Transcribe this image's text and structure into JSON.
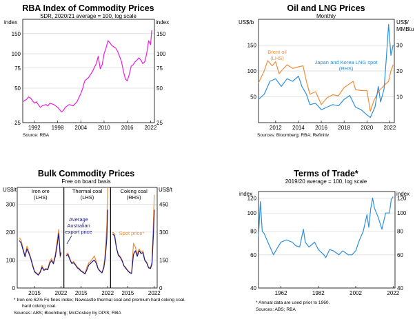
{
  "chart_data": [
    {
      "type": "line",
      "title": "RBA Index of Commodity Prices",
      "subtitle": "SDR, 2020/21 average = 100, log scale",
      "ylabel_left": "index",
      "ylabel_right": "index",
      "y_scale": "log",
      "ylim": [
        25,
        200
      ],
      "yticks": [
        25,
        50,
        75,
        100,
        150
      ],
      "xticks": [
        "1992",
        "1998",
        "2004",
        "2010",
        "2016",
        "2022"
      ],
      "xlim": [
        1989,
        2023
      ],
      "grid": true,
      "source": "Source:   RBA",
      "colors": {
        "series": "#e91ee0"
      },
      "series": [
        {
          "name": "",
          "x": [
            1989,
            1990,
            1990.5,
            1991,
            1991.5,
            1992,
            1992.5,
            1993,
            1993.5,
            1994,
            1995,
            1995.5,
            1996,
            1997,
            1998,
            1999,
            1999.5,
            2000,
            2001,
            2002,
            2003,
            2004,
            2004.5,
            2005,
            2006,
            2007,
            2008,
            2008.5,
            2009,
            2009.5,
            2010,
            2010.5,
            2011,
            2011.5,
            2012,
            2013,
            2013.5,
            2014,
            2014.5,
            2015,
            2015.5,
            2016,
            2016.5,
            2017,
            2017.5,
            2018,
            2018.5,
            2019,
            2019.5,
            2020,
            2020.5,
            2021,
            2021.5,
            2022,
            2022.3
          ],
          "values": [
            38,
            40,
            42,
            41,
            39,
            37,
            38,
            36,
            34,
            35,
            36,
            35,
            37,
            36,
            34,
            31,
            32,
            34,
            36,
            35,
            38,
            45,
            50,
            58,
            62,
            70,
            82,
            95,
            74,
            80,
            100,
            112,
            130,
            125,
            118,
            112,
            105,
            95,
            85,
            70,
            60,
            58,
            66,
            78,
            80,
            85,
            88,
            92,
            88,
            82,
            85,
            100,
            130,
            120,
            160
          ]
        }
      ]
    },
    {
      "type": "line",
      "title": "Oil and LNG Prices",
      "subtitle": "Monthly",
      "ylabel_left": "US$/b",
      "ylabel_right": "US$/ MMBtu",
      "ylim_left": [
        0,
        200
      ],
      "ylim_right": [
        0,
        40
      ],
      "yticks_left": [
        50,
        100,
        150
      ],
      "yticks_right": [
        10,
        20,
        30
      ],
      "xticks": [
        "2012",
        "2014",
        "2016",
        "2018",
        "2020",
        "2022"
      ],
      "xlim": [
        2010.5,
        2022.4
      ],
      "grid": true,
      "source": "Sources: Bloomberg; RBA; Refinitiv",
      "colors": {
        "brent": "#f28c35",
        "lng": "#2a8fe0"
      },
      "series": [
        {
          "name": "Brent oil (LHS)",
          "x": [
            2010.5,
            2011,
            2011.3,
            2011.7,
            2012,
            2012.3,
            2012.5,
            2013,
            2013.5,
            2014,
            2014.4,
            2014.7,
            2015,
            2015.5,
            2016,
            2016.5,
            2017,
            2017.5,
            2018,
            2018.8,
            2019,
            2019.5,
            2020,
            2020.3,
            2020.6,
            2021,
            2021.5,
            2021.9,
            2022.1,
            2022.3
          ],
          "values": [
            77,
            100,
            120,
            110,
            118,
            95,
            100,
            112,
            105,
            108,
            110,
            80,
            55,
            60,
            35,
            48,
            54,
            52,
            68,
            80,
            64,
            62,
            62,
            22,
            42,
            60,
            72,
            80,
            100,
            112
          ]
        },
        {
          "name": "Japan and Korea LNG spot (RHS)",
          "x": [
            2010.5,
            2011,
            2011.5,
            2012,
            2012.5,
            2013,
            2013.5,
            2014,
            2014.3,
            2014.7,
            2015,
            2015.5,
            2016,
            2016.5,
            2017,
            2017.5,
            2018,
            2018.5,
            2019,
            2019.5,
            2020,
            2020.3,
            2020.7,
            2021,
            2021.2,
            2021.5,
            2021.7,
            2021.9,
            2022.1,
            2022.3
          ],
          "values": [
            9,
            11,
            16,
            17,
            14,
            17,
            16,
            18,
            14,
            11,
            7,
            7.5,
            5,
            6,
            7,
            6.5,
            9,
            10.5,
            6,
            5,
            3,
            2,
            6,
            14,
            8,
            13,
            25,
            38,
            26,
            30
          ]
        }
      ]
    },
    {
      "type": "line",
      "title": "Bulk Commodity Prices",
      "subtitle": "Free on board basis",
      "ylabel_left": "US$/t",
      "ylabel_right": "US$/t",
      "ylim_left": [
        0,
        360
      ],
      "ylim_right": [
        0,
        540
      ],
      "yticks_left": [
        0,
        100,
        200,
        300
      ],
      "yticks_right": [
        0,
        150,
        300,
        450
      ],
      "panels": [
        {
          "name": "Iron ore",
          "axis": "(LHS)",
          "xticks": [
            "2015",
            "2022"
          ],
          "x": [
            2011,
            2011.5,
            2012,
            2012.5,
            2013,
            2013.5,
            2014,
            2014.5,
            2015,
            2015.5,
            2016,
            2016.5,
            2017,
            2017.5,
            2018,
            2018.5,
            2019,
            2019.5,
            2020,
            2020.5,
            2021,
            2021.4,
            2021.8,
            2022
          ],
          "spot": [
            180,
            170,
            140,
            115,
            150,
            130,
            110,
            85,
            60,
            55,
            48,
            60,
            80,
            65,
            70,
            68,
            95,
            105,
            90,
            120,
            170,
            210,
            110,
            130
          ],
          "average_export": [
            170,
            160,
            135,
            112,
            140,
            125,
            105,
            80,
            58,
            52,
            46,
            56,
            74,
            63,
            67,
            65,
            88,
            98,
            87,
            112,
            155,
            195,
            115,
            125
          ]
        },
        {
          "name": "Thermal coal",
          "axis": "(LHS)",
          "xticks": [
            "2015",
            "2022"
          ],
          "x": [
            2011,
            2011.5,
            2012,
            2012.5,
            2013,
            2013.5,
            2014,
            2014.5,
            2015,
            2015.5,
            2016,
            2016.5,
            2017,
            2017.5,
            2018,
            2018.5,
            2019,
            2019.5,
            2020,
            2020.5,
            2021,
            2021.4,
            2021.8,
            2022
          ],
          "spot": [
            120,
            125,
            105,
            90,
            95,
            85,
            75,
            70,
            62,
            58,
            52,
            75,
            90,
            95,
            105,
            115,
            95,
            70,
            62,
            55,
            80,
            130,
            230,
            360
          ],
          "average_export": [
            115,
            120,
            102,
            88,
            90,
            82,
            72,
            67,
            60,
            56,
            50,
            65,
            82,
            88,
            95,
            100,
            88,
            68,
            60,
            54,
            72,
            110,
            180,
            280
          ]
        },
        {
          "name": "Coking coal",
          "axis": "(RHS)",
          "xticks": [
            "2015",
            "2022"
          ],
          "x": [
            2011,
            2011.5,
            2012,
            2012.5,
            2013,
            2013.5,
            2014,
            2014.5,
            2015,
            2015.5,
            2016,
            2016.5,
            2017,
            2017.5,
            2018,
            2018.5,
            2019,
            2019.5,
            2020,
            2020.5,
            2021,
            2021.4,
            2021.8,
            2022
          ],
          "spot": [
            300,
            290,
            220,
            180,
            170,
            150,
            120,
            110,
            95,
            85,
            80,
            240,
            220,
            180,
            210,
            190,
            200,
            150,
            140,
            110,
            110,
            140,
            380,
            500
          ],
          "average_export": [
            290,
            280,
            215,
            175,
            165,
            145,
            118,
            105,
            92,
            82,
            78,
            180,
            200,
            170,
            200,
            185,
            190,
            148,
            135,
            108,
            105,
            130,
            300,
            420
          ]
        }
      ],
      "series": [
        {
          "name": "Average Australian export price"
        },
        {
          "name": "Spot price*"
        }
      ],
      "colors": {
        "spot": "#f28c35",
        "average_export": "#1a1a8c"
      },
      "footnote": "*     Iron ore 62% Fe fines index; Newcastle thermal coal and premium hard coking coal.",
      "source": "Sources: ABS; Bloomberg; McCloskey by OPIS; RBA"
    },
    {
      "type": "line",
      "title": "Terms of Trade*",
      "subtitle": "2019/20 average = 100, log scale",
      "ylabel_left": "index",
      "ylabel_right": "index",
      "y_scale": "log",
      "ylim": [
        40,
        130
      ],
      "yticks": [
        40,
        60,
        80,
        100,
        120
      ],
      "xticks": [
        "1962",
        "1982",
        "2002",
        "2022"
      ],
      "xlim": [
        1950,
        2023
      ],
      "grid": true,
      "colors": {
        "series": "#2a8fe0"
      },
      "series": [
        {
          "name": "",
          "x": [
            1950,
            1951,
            1952,
            1953,
            1955,
            1958,
            1960,
            1962,
            1965,
            1968,
            1970,
            1972,
            1974,
            1975,
            1977,
            1980,
            1982,
            1985,
            1986,
            1988,
            1990,
            1993,
            1995,
            1998,
            2000,
            2002,
            2004,
            2006,
            2008,
            2009,
            2010,
            2011,
            2012,
            2014,
            2016,
            2018,
            2020,
            2021,
            2022
          ],
          "values": [
            75,
            115,
            80,
            78,
            70,
            60,
            65,
            70,
            72,
            70,
            67,
            66,
            82,
            70,
            66,
            70,
            64,
            60,
            58,
            64,
            63,
            60,
            63,
            60,
            60,
            63,
            72,
            80,
            98,
            84,
            105,
            120,
            106,
            95,
            82,
            100,
            100,
            118,
            122
          ]
        }
      ],
      "footnote": "*     Annual data are used prior to 1960.",
      "source": "Sources: ABS; RBA"
    }
  ]
}
